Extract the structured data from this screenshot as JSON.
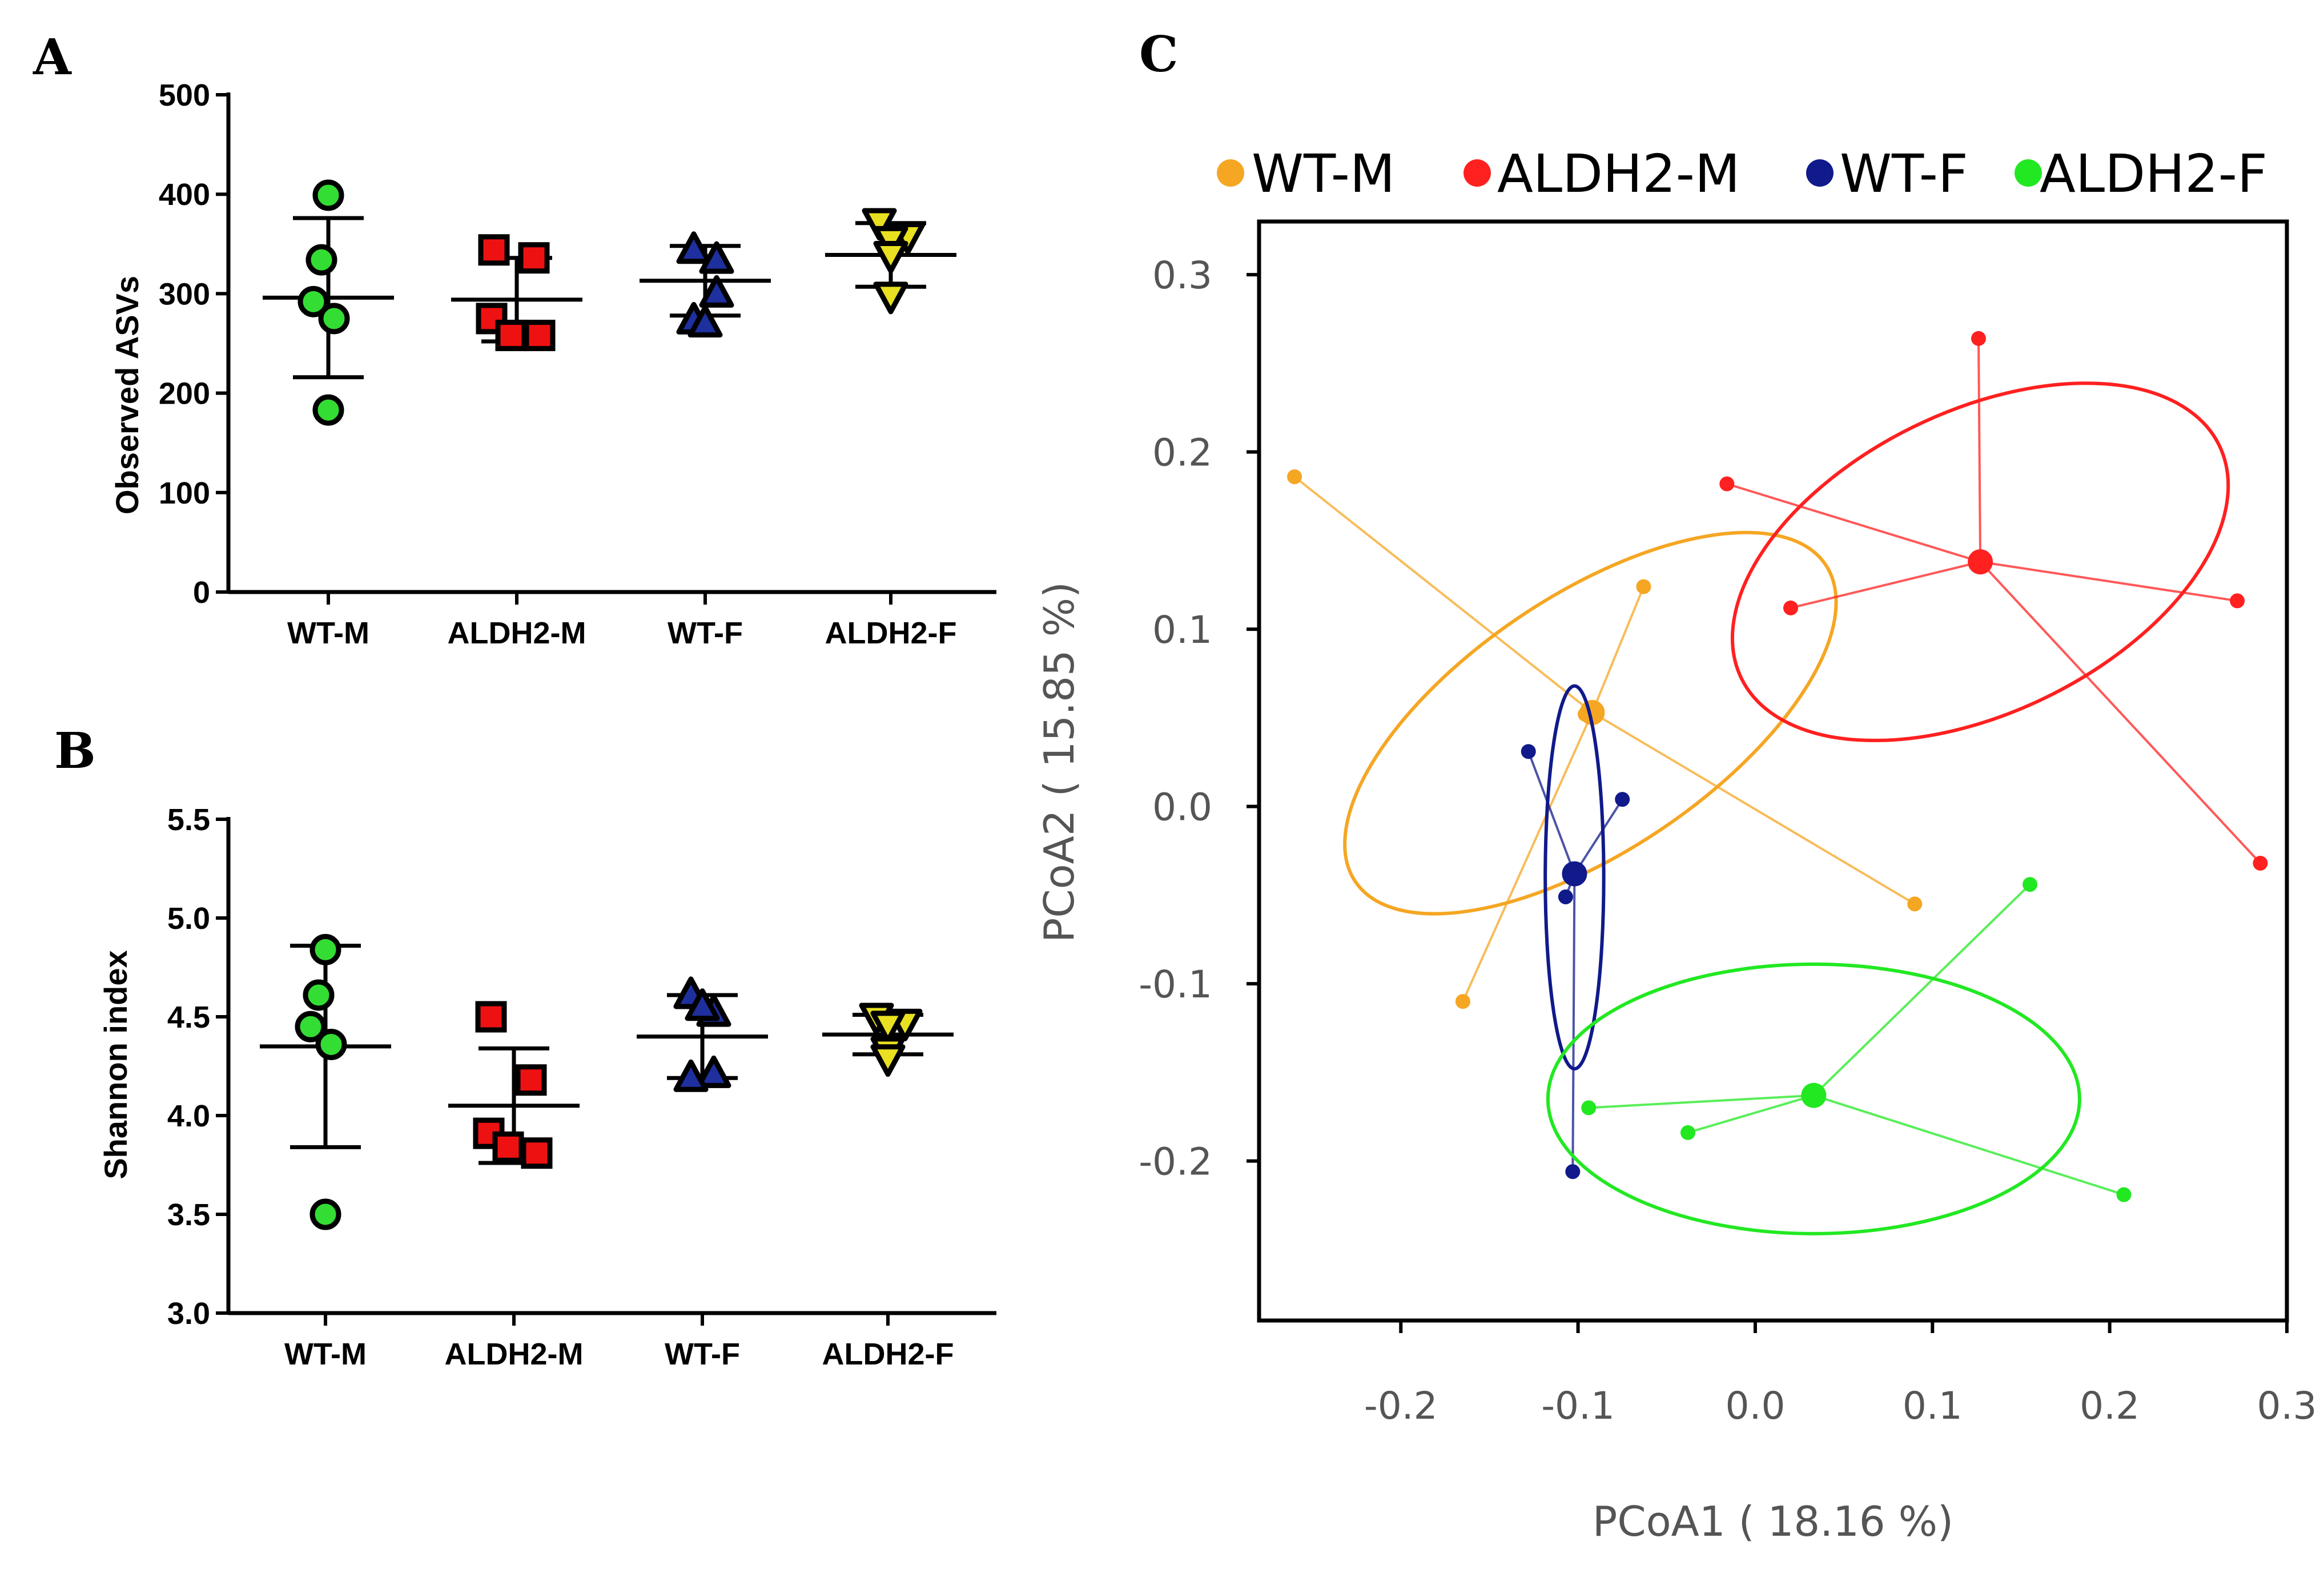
{
  "figure": {
    "panel_labels": {
      "a": "A",
      "b": "B",
      "c": "C"
    }
  },
  "colors": {
    "WT-M": "#f5a623",
    "ALDH2-M": "#ff2020",
    "WT-F": "#101a8a",
    "ALDH2-F": "#22e822",
    "markers": {
      "circle": "#33dd33",
      "square": "#ee1111",
      "triangle": "#1e2f9e",
      "inv-triangle": "#e8e020"
    }
  },
  "chart_data": [
    {
      "id": "A",
      "type": "scatter",
      "title": "",
      "xlabel": "",
      "ylabel": "Observed ASVs",
      "ylim": [
        0,
        500
      ],
      "yticks": [
        0,
        100,
        200,
        300,
        400,
        500
      ],
      "categories": [
        "WT-M",
        "ALDH2-M",
        "WT-F",
        "ALDH2-F"
      ],
      "markers": [
        "circle",
        "square",
        "triangle",
        "inv-triangle"
      ],
      "points": [
        [
          399,
          334,
          292,
          275,
          183
        ],
        [
          344,
          336,
          275,
          258,
          258
        ],
        [
          344,
          334,
          300,
          273,
          270
        ],
        [
          372,
          358,
          354,
          298,
          339
        ]
      ],
      "mean": [
        296,
        294,
        313,
        339
      ],
      "sd": [
        80,
        42,
        35,
        32
      ]
    },
    {
      "id": "B",
      "type": "scatter",
      "title": "",
      "xlabel": "",
      "ylabel": "Shannon index",
      "ylim": [
        3.0,
        5.5
      ],
      "yticks": [
        "3.0",
        "3.5",
        "4.0",
        "4.5",
        "5.0",
        "5.5"
      ],
      "categories": [
        "WT-M",
        "ALDH2-M",
        "WT-F",
        "ALDH2-F"
      ],
      "markers": [
        "circle",
        "square",
        "triangle",
        "inv-triangle"
      ],
      "points": [
        [
          4.84,
          4.61,
          4.45,
          4.36,
          3.5
        ],
        [
          4.5,
          4.18,
          3.91,
          3.84,
          3.81
        ],
        [
          4.61,
          4.52,
          4.21,
          4.19,
          4.55
        ],
        [
          4.5,
          4.47,
          4.46,
          4.33,
          4.29
        ]
      ],
      "mean": [
        4.35,
        4.05,
        4.4,
        4.41
      ],
      "sd": [
        0.51,
        0.29,
        0.21,
        0.1
      ]
    },
    {
      "id": "C",
      "type": "scatter",
      "title": "",
      "xlabel": "PCoA1 ( 18.16 %)",
      "ylabel": "PCoA2 ( 15.85 %)",
      "xlim": [
        -0.28,
        0.3
      ],
      "ylim": [
        -0.29,
        0.33
      ],
      "xticks": [
        "-0.2",
        "-0.1",
        "0.0",
        "0.1",
        "0.2",
        "0.3"
      ],
      "yticks": [
        "-0.2",
        "-0.1",
        "0.0",
        "0.1",
        "0.2",
        "0.3"
      ],
      "legend": [
        "WT-M",
        "ALDH2-M",
        "WT-F",
        "ALDH2-F"
      ],
      "legend_position": "top",
      "groups": [
        {
          "name": "WT-M",
          "centroid": [
            -0.092,
            0.053
          ],
          "points": [
            [
              -0.26,
              0.186
            ],
            [
              -0.063,
              0.124
            ],
            [
              -0.096,
              0.052
            ],
            [
              0.09,
              -0.055
            ],
            [
              -0.165,
              -0.11
            ]
          ],
          "ellipse": {
            "center": [
              -0.093,
              0.047
            ],
            "rx": 0.16,
            "ry": 0.072,
            "angle_deg": -34
          }
        },
        {
          "name": "ALDH2-M",
          "centroid": [
            0.127,
            0.138
          ],
          "points": [
            [
              0.126,
              0.264
            ],
            [
              -0.016,
              0.182
            ],
            [
              0.02,
              0.112
            ],
            [
              0.272,
              0.116
            ],
            [
              0.285,
              -0.032
            ]
          ],
          "ellipse": {
            "center": [
              0.127,
              0.138
            ],
            "rx": 0.15,
            "ry": 0.085,
            "angle_deg": -26
          }
        },
        {
          "name": "WT-F",
          "centroid": [
            -0.102,
            -0.038
          ],
          "points": [
            [
              -0.128,
              0.031
            ],
            [
              -0.075,
              0.004
            ],
            [
              -0.107,
              -0.051
            ],
            [
              -0.103,
              -0.206
            ]
          ],
          "ellipse": {
            "center": [
              -0.102,
              -0.04
            ],
            "rx": 0.0165,
            "ry": 0.108,
            "angle_deg": 0
          }
        },
        {
          "name": "ALDH2-F",
          "centroid": [
            0.033,
            -0.163
          ],
          "points": [
            [
              0.155,
              -0.044
            ],
            [
              -0.094,
              -0.17
            ],
            [
              -0.038,
              -0.184
            ],
            [
              0.208,
              -0.219
            ]
          ],
          "ellipse": {
            "center": [
              0.033,
              -0.165
            ],
            "rx": 0.15,
            "ry": 0.076,
            "angle_deg": 0
          }
        }
      ]
    }
  ]
}
